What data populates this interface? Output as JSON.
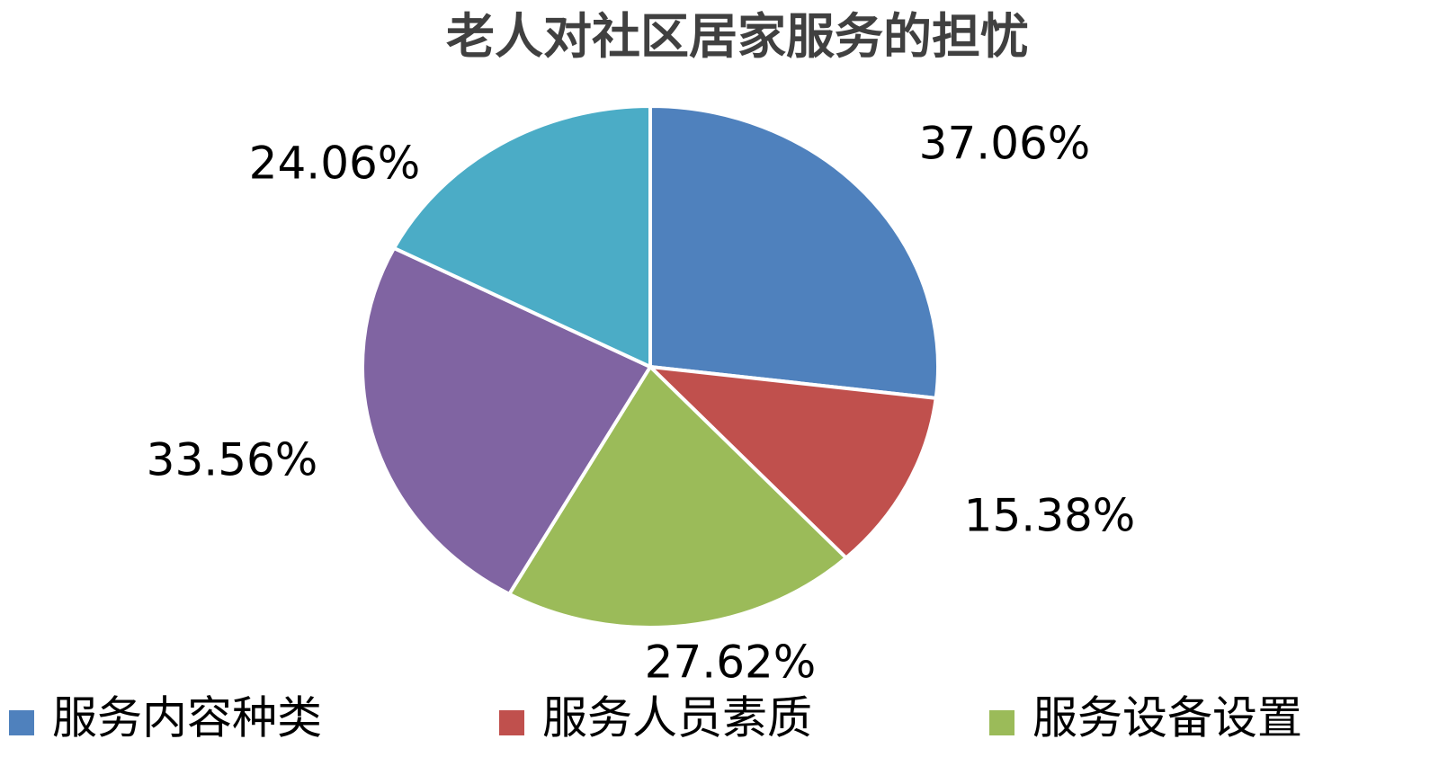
{
  "chart_data": {
    "type": "pie",
    "title": "老人对社区居家服务的担忧",
    "categories": [
      "服务内容种类",
      "服务人员素质",
      "服务设备设置",
      null,
      null
    ],
    "values": [
      37.06,
      15.38,
      27.62,
      33.56,
      24.06
    ],
    "value_labels": [
      "37.06%",
      "15.38%",
      "27.62%",
      "33.56%",
      "24.06%"
    ],
    "colors": [
      "#4f81bd",
      "#c0504d",
      "#9bbb59",
      "#8064a2",
      "#4bacc6"
    ],
    "legend": "bottom"
  }
}
